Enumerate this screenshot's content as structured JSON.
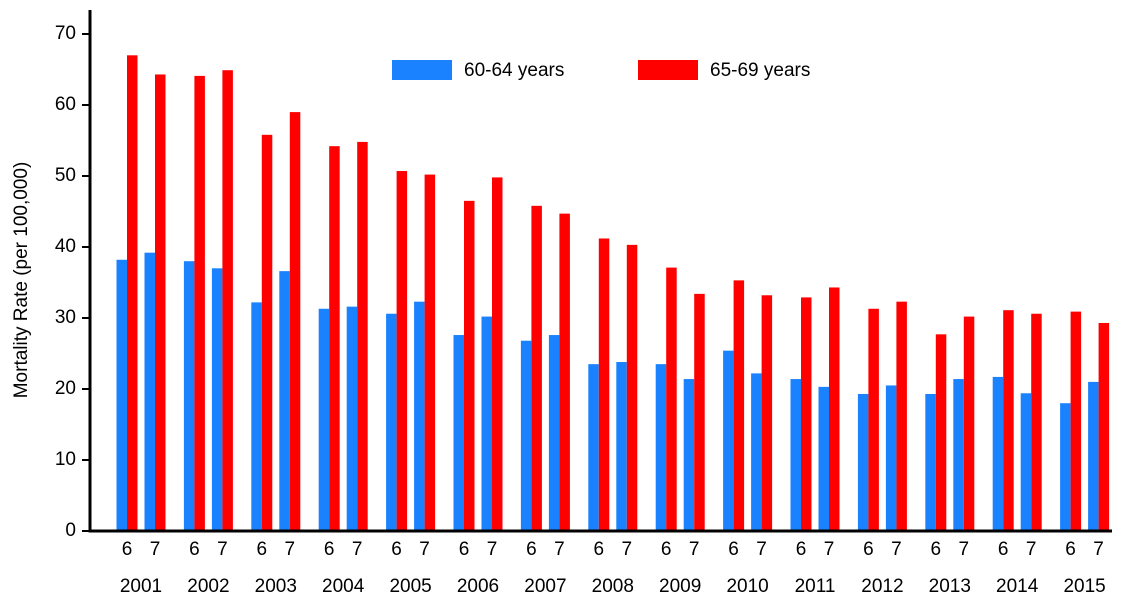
{
  "chart_data": {
    "type": "bar",
    "y_label": "Mortality Rate (per 100,000)",
    "categories": [
      "6",
      "7",
      "6",
      "7",
      "6",
      "7",
      "6",
      "7",
      "6",
      "7",
      "6",
      "7",
      "6",
      "7",
      "6",
      "7",
      "6",
      "7",
      "6",
      "7",
      "6",
      "7",
      "6",
      "7",
      "6",
      "7",
      "6",
      "7",
      "6",
      "7"
    ],
    "groups": [
      "2001",
      "2002",
      "2003",
      "2004",
      "2005",
      "2006",
      "2007",
      "2008",
      "2009",
      "2010",
      "2011",
      "2012",
      "2013",
      "2014",
      "2015"
    ],
    "series": [
      {
        "name": "60-64 years",
        "color": "#1a82ff",
        "values": [
          38.2,
          39.2,
          38.0,
          37.0,
          32.2,
          36.6,
          31.3,
          31.6,
          30.6,
          32.3,
          27.6,
          30.2,
          26.8,
          27.6,
          23.5,
          23.8,
          23.5,
          21.4,
          25.4,
          22.2,
          21.4,
          20.3,
          19.3,
          20.5,
          19.3,
          21.4,
          21.7,
          19.4,
          18.0,
          21.0
        ]
      },
      {
        "name": "65-69 years",
        "color": "#ff0000",
        "values": [
          67.0,
          64.3,
          64.1,
          64.9,
          55.8,
          59.0,
          54.2,
          54.8,
          50.7,
          50.2,
          46.5,
          49.8,
          45.8,
          44.7,
          41.2,
          40.3,
          37.1,
          33.4,
          35.3,
          33.2,
          32.9,
          34.3,
          31.3,
          32.3,
          27.7,
          30.2,
          31.1,
          30.6,
          30.9,
          29.3
        ]
      }
    ],
    "ylim": [
      0,
      70
    ],
    "yticks": [
      0,
      10,
      20,
      30,
      40,
      50,
      60,
      70
    ],
    "grid": false
  }
}
